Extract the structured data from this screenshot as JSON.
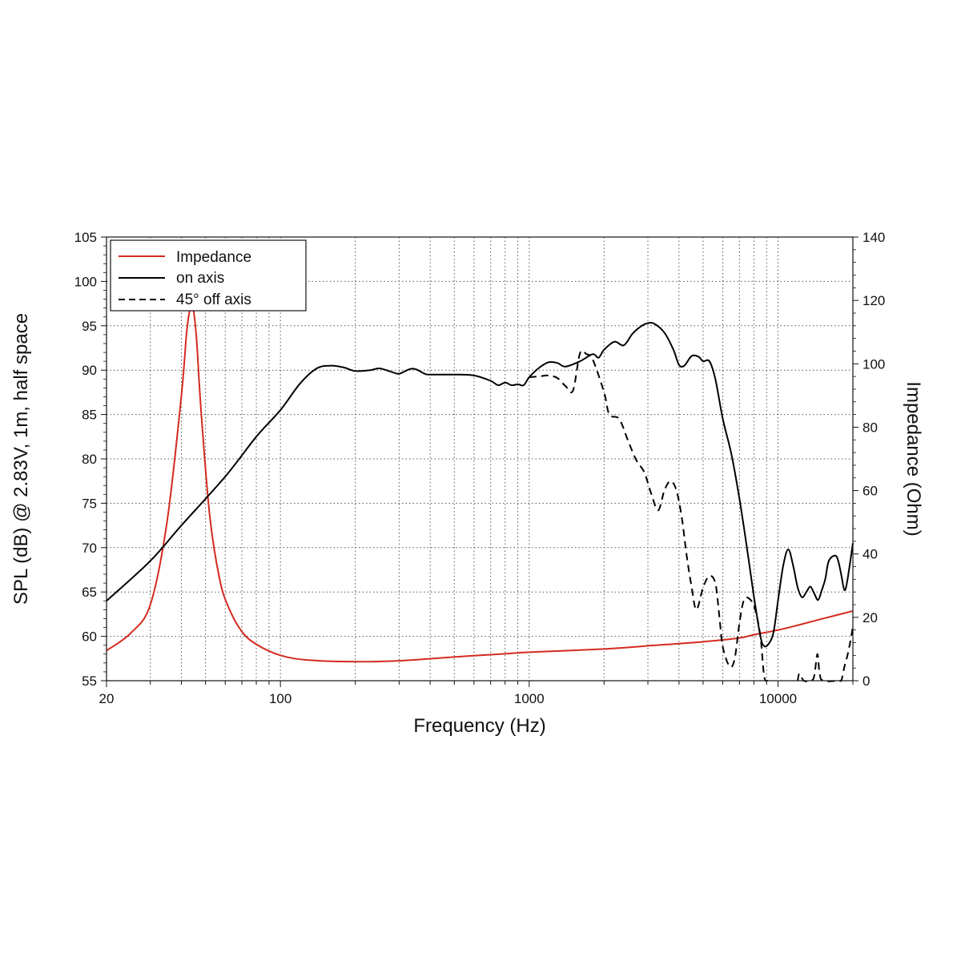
{
  "chart_data": {
    "type": "line",
    "xlabel": "Frequency (Hz)",
    "ylabel_left": "SPL (dB) @ 2.83V, 1m, half space",
    "ylabel_right": "Impedance (Ohm)",
    "x_scale": "log",
    "xlim": [
      20,
      20000
    ],
    "ylim_left": [
      55,
      105
    ],
    "ylim_right": [
      0,
      140
    ],
    "x_tick_labels": [
      "20",
      "100",
      "1000",
      "10000"
    ],
    "x_tick_values": [
      20,
      100,
      1000,
      10000
    ],
    "y_left_ticks": [
      55,
      60,
      65,
      70,
      75,
      80,
      85,
      90,
      95,
      100,
      105
    ],
    "y_right_ticks": [
      0,
      20,
      40,
      60,
      80,
      100,
      120,
      140
    ],
    "grid": true,
    "legend_position": "top-left",
    "series": [
      {
        "name": "Impedance",
        "axis": "right",
        "color": "#d42a20",
        "style": "solid",
        "points": [
          [
            20,
            9.5
          ],
          [
            25,
            15
          ],
          [
            30,
            24
          ],
          [
            35,
            50
          ],
          [
            40,
            90
          ],
          [
            42,
            110
          ],
          [
            43.5,
            118
          ],
          [
            44.5,
            118
          ],
          [
            46,
            108
          ],
          [
            48,
            85
          ],
          [
            52,
            52
          ],
          [
            57,
            32
          ],
          [
            62,
            23
          ],
          [
            70,
            15.5
          ],
          [
            80,
            11.5
          ],
          [
            100,
            8
          ],
          [
            130,
            6.5
          ],
          [
            200,
            6
          ],
          [
            300,
            6.3
          ],
          [
            500,
            7.5
          ],
          [
            800,
            8.5
          ],
          [
            1000,
            9
          ],
          [
            2000,
            10
          ],
          [
            3000,
            11
          ],
          [
            5000,
            12.3
          ],
          [
            7000,
            13.5
          ],
          [
            8000,
            14.5
          ],
          [
            10000,
            16
          ],
          [
            12000,
            17.5
          ],
          [
            15000,
            19.5
          ],
          [
            20000,
            22
          ]
        ]
      },
      {
        "name": "on axis",
        "axis": "left",
        "color": "#000000",
        "style": "solid",
        "points": [
          [
            20,
            64
          ],
          [
            30,
            68.5
          ],
          [
            40,
            72.5
          ],
          [
            60,
            78
          ],
          [
            80,
            82.5
          ],
          [
            100,
            85.5
          ],
          [
            120,
            88.5
          ],
          [
            140,
            90.2
          ],
          [
            160,
            90.5
          ],
          [
            180,
            90.3
          ],
          [
            200,
            89.9
          ],
          [
            230,
            90
          ],
          [
            250,
            90.2
          ],
          [
            280,
            89.8
          ],
          [
            300,
            89.6
          ],
          [
            330,
            90.1
          ],
          [
            350,
            90.1
          ],
          [
            380,
            89.6
          ],
          [
            400,
            89.5
          ],
          [
            500,
            89.5
          ],
          [
            600,
            89.4
          ],
          [
            700,
            88.8
          ],
          [
            750,
            88.3
          ],
          [
            800,
            88.6
          ],
          [
            850,
            88.3
          ],
          [
            900,
            88.4
          ],
          [
            950,
            88.3
          ],
          [
            1000,
            89.2
          ],
          [
            1100,
            90.3
          ],
          [
            1200,
            90.9
          ],
          [
            1300,
            90.8
          ],
          [
            1400,
            90.4
          ],
          [
            1600,
            91
          ],
          [
            1800,
            91.8
          ],
          [
            1900,
            91.4
          ],
          [
            2000,
            92.3
          ],
          [
            2200,
            93.2
          ],
          [
            2400,
            92.8
          ],
          [
            2600,
            94.1
          ],
          [
            2800,
            94.9
          ],
          [
            3000,
            95.3
          ],
          [
            3200,
            95.2
          ],
          [
            3500,
            94.2
          ],
          [
            3800,
            92.3
          ],
          [
            4000,
            90.6
          ],
          [
            4200,
            90.5
          ],
          [
            4500,
            91.6
          ],
          [
            4800,
            91.5
          ],
          [
            5000,
            91
          ],
          [
            5300,
            91
          ],
          [
            5600,
            89
          ],
          [
            6000,
            84.5
          ],
          [
            6500,
            80.5
          ],
          [
            7000,
            75.5
          ],
          [
            7500,
            70
          ],
          [
            8000,
            64.5
          ],
          [
            8500,
            60
          ],
          [
            8800,
            58.9
          ],
          [
            9200,
            59.2
          ],
          [
            9600,
            60.5
          ],
          [
            10000,
            64
          ],
          [
            10500,
            68
          ],
          [
            11000,
            69.8
          ],
          [
            11500,
            68
          ],
          [
            12000,
            65.5
          ],
          [
            12500,
            64.4
          ],
          [
            13000,
            65
          ],
          [
            13500,
            65.6
          ],
          [
            14000,
            64.8
          ],
          [
            14500,
            64.1
          ],
          [
            15000,
            65.2
          ],
          [
            15500,
            66.5
          ],
          [
            16000,
            68.5
          ],
          [
            17000,
            69.1
          ],
          [
            17500,
            68.4
          ],
          [
            18000,
            66.8
          ],
          [
            18500,
            65.2
          ],
          [
            19000,
            66.3
          ],
          [
            20000,
            70.5
          ]
        ]
      },
      {
        "name": "45° off axis",
        "axis": "left",
        "color": "#000000",
        "style": "dashed",
        "points": [
          [
            1000,
            89.2
          ],
          [
            1100,
            89.3
          ],
          [
            1200,
            89.4
          ],
          [
            1300,
            89.1
          ],
          [
            1400,
            88.2
          ],
          [
            1500,
            87.7
          ],
          [
            1700,
            91.8
          ],
          [
            1600,
            91.9
          ],
          [
            1800,
            91.2
          ],
          [
            2000,
            87.5
          ],
          [
            2100,
            85
          ],
          [
            2300,
            84.5
          ],
          [
            2500,
            82
          ],
          [
            2700,
            79.8
          ],
          [
            2900,
            78.5
          ],
          [
            3100,
            76
          ],
          [
            3300,
            74.2
          ],
          [
            3500,
            76.5
          ],
          [
            3700,
            77.5
          ],
          [
            3900,
            76.5
          ],
          [
            4100,
            73.5
          ],
          [
            4300,
            69
          ],
          [
            4500,
            65.5
          ],
          [
            4700,
            63
          ],
          [
            5000,
            65.5
          ],
          [
            5300,
            66.8
          ],
          [
            5600,
            66
          ],
          [
            5800,
            62.5
          ],
          [
            6000,
            58.8
          ],
          [
            6400,
            56.6
          ],
          [
            6700,
            57.5
          ],
          [
            7000,
            61.5
          ],
          [
            7300,
            64.1
          ],
          [
            7700,
            64.2
          ],
          [
            8100,
            63
          ],
          [
            8500,
            60
          ],
          [
            8800,
            55.5
          ],
          [
            9100,
            55
          ]
        ],
        "points_tail": [
          [
            12000,
            55
          ],
          [
            12200,
            55.8
          ],
          [
            12700,
            55
          ],
          [
            13600,
            55
          ],
          [
            14000,
            55.6
          ],
          [
            14400,
            58
          ],
          [
            14700,
            55.8
          ],
          [
            15200,
            55
          ],
          [
            17500,
            55
          ],
          [
            18000,
            55.1
          ],
          [
            18500,
            56.6
          ],
          [
            19000,
            57.8
          ],
          [
            19500,
            59.3
          ],
          [
            20000,
            61.1
          ]
        ]
      }
    ]
  }
}
